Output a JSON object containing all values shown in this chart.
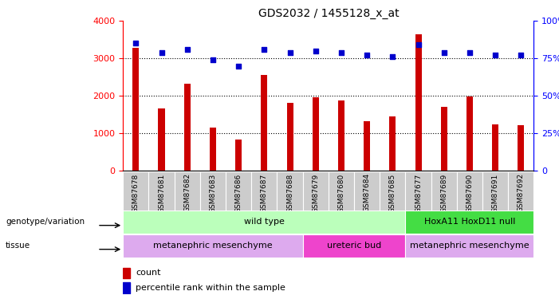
{
  "title": "GDS2032 / 1455128_x_at",
  "samples": [
    "GSM87678",
    "GSM87681",
    "GSM87682",
    "GSM87683",
    "GSM87686",
    "GSM87687",
    "GSM87688",
    "GSM87679",
    "GSM87680",
    "GSM87684",
    "GSM87685",
    "GSM87677",
    "GSM87689",
    "GSM87690",
    "GSM87691",
    "GSM87692"
  ],
  "counts": [
    3280,
    1650,
    2320,
    1150,
    830,
    2560,
    1800,
    1950,
    1870,
    1310,
    1450,
    3650,
    1700,
    1980,
    1230,
    1210
  ],
  "percentiles": [
    85,
    79,
    81,
    74,
    70,
    81,
    79,
    80,
    79,
    77,
    76,
    84,
    79,
    79,
    77,
    77
  ],
  "ylim_left": [
    0,
    4000
  ],
  "ylim_right": [
    0,
    100
  ],
  "yticks_left": [
    0,
    1000,
    2000,
    3000,
    4000
  ],
  "yticks_right": [
    0,
    25,
    50,
    75,
    100
  ],
  "bar_color": "#cc0000",
  "dot_color": "#0000cc",
  "bg_color": "#ffffff",
  "genotype_groups": [
    {
      "label": "wild type",
      "start": 0,
      "end": 11,
      "color": "#bbffbb"
    },
    {
      "label": "HoxA11 HoxD11 null",
      "start": 11,
      "end": 16,
      "color": "#44dd44"
    }
  ],
  "tissue_groups": [
    {
      "label": "metanephric mesenchyme",
      "start": 0,
      "end": 7,
      "color": "#ddaaee"
    },
    {
      "label": "ureteric bud",
      "start": 7,
      "end": 11,
      "color": "#ee44cc"
    },
    {
      "label": "metanephric mesenchyme",
      "start": 11,
      "end": 16,
      "color": "#ddaaee"
    }
  ]
}
